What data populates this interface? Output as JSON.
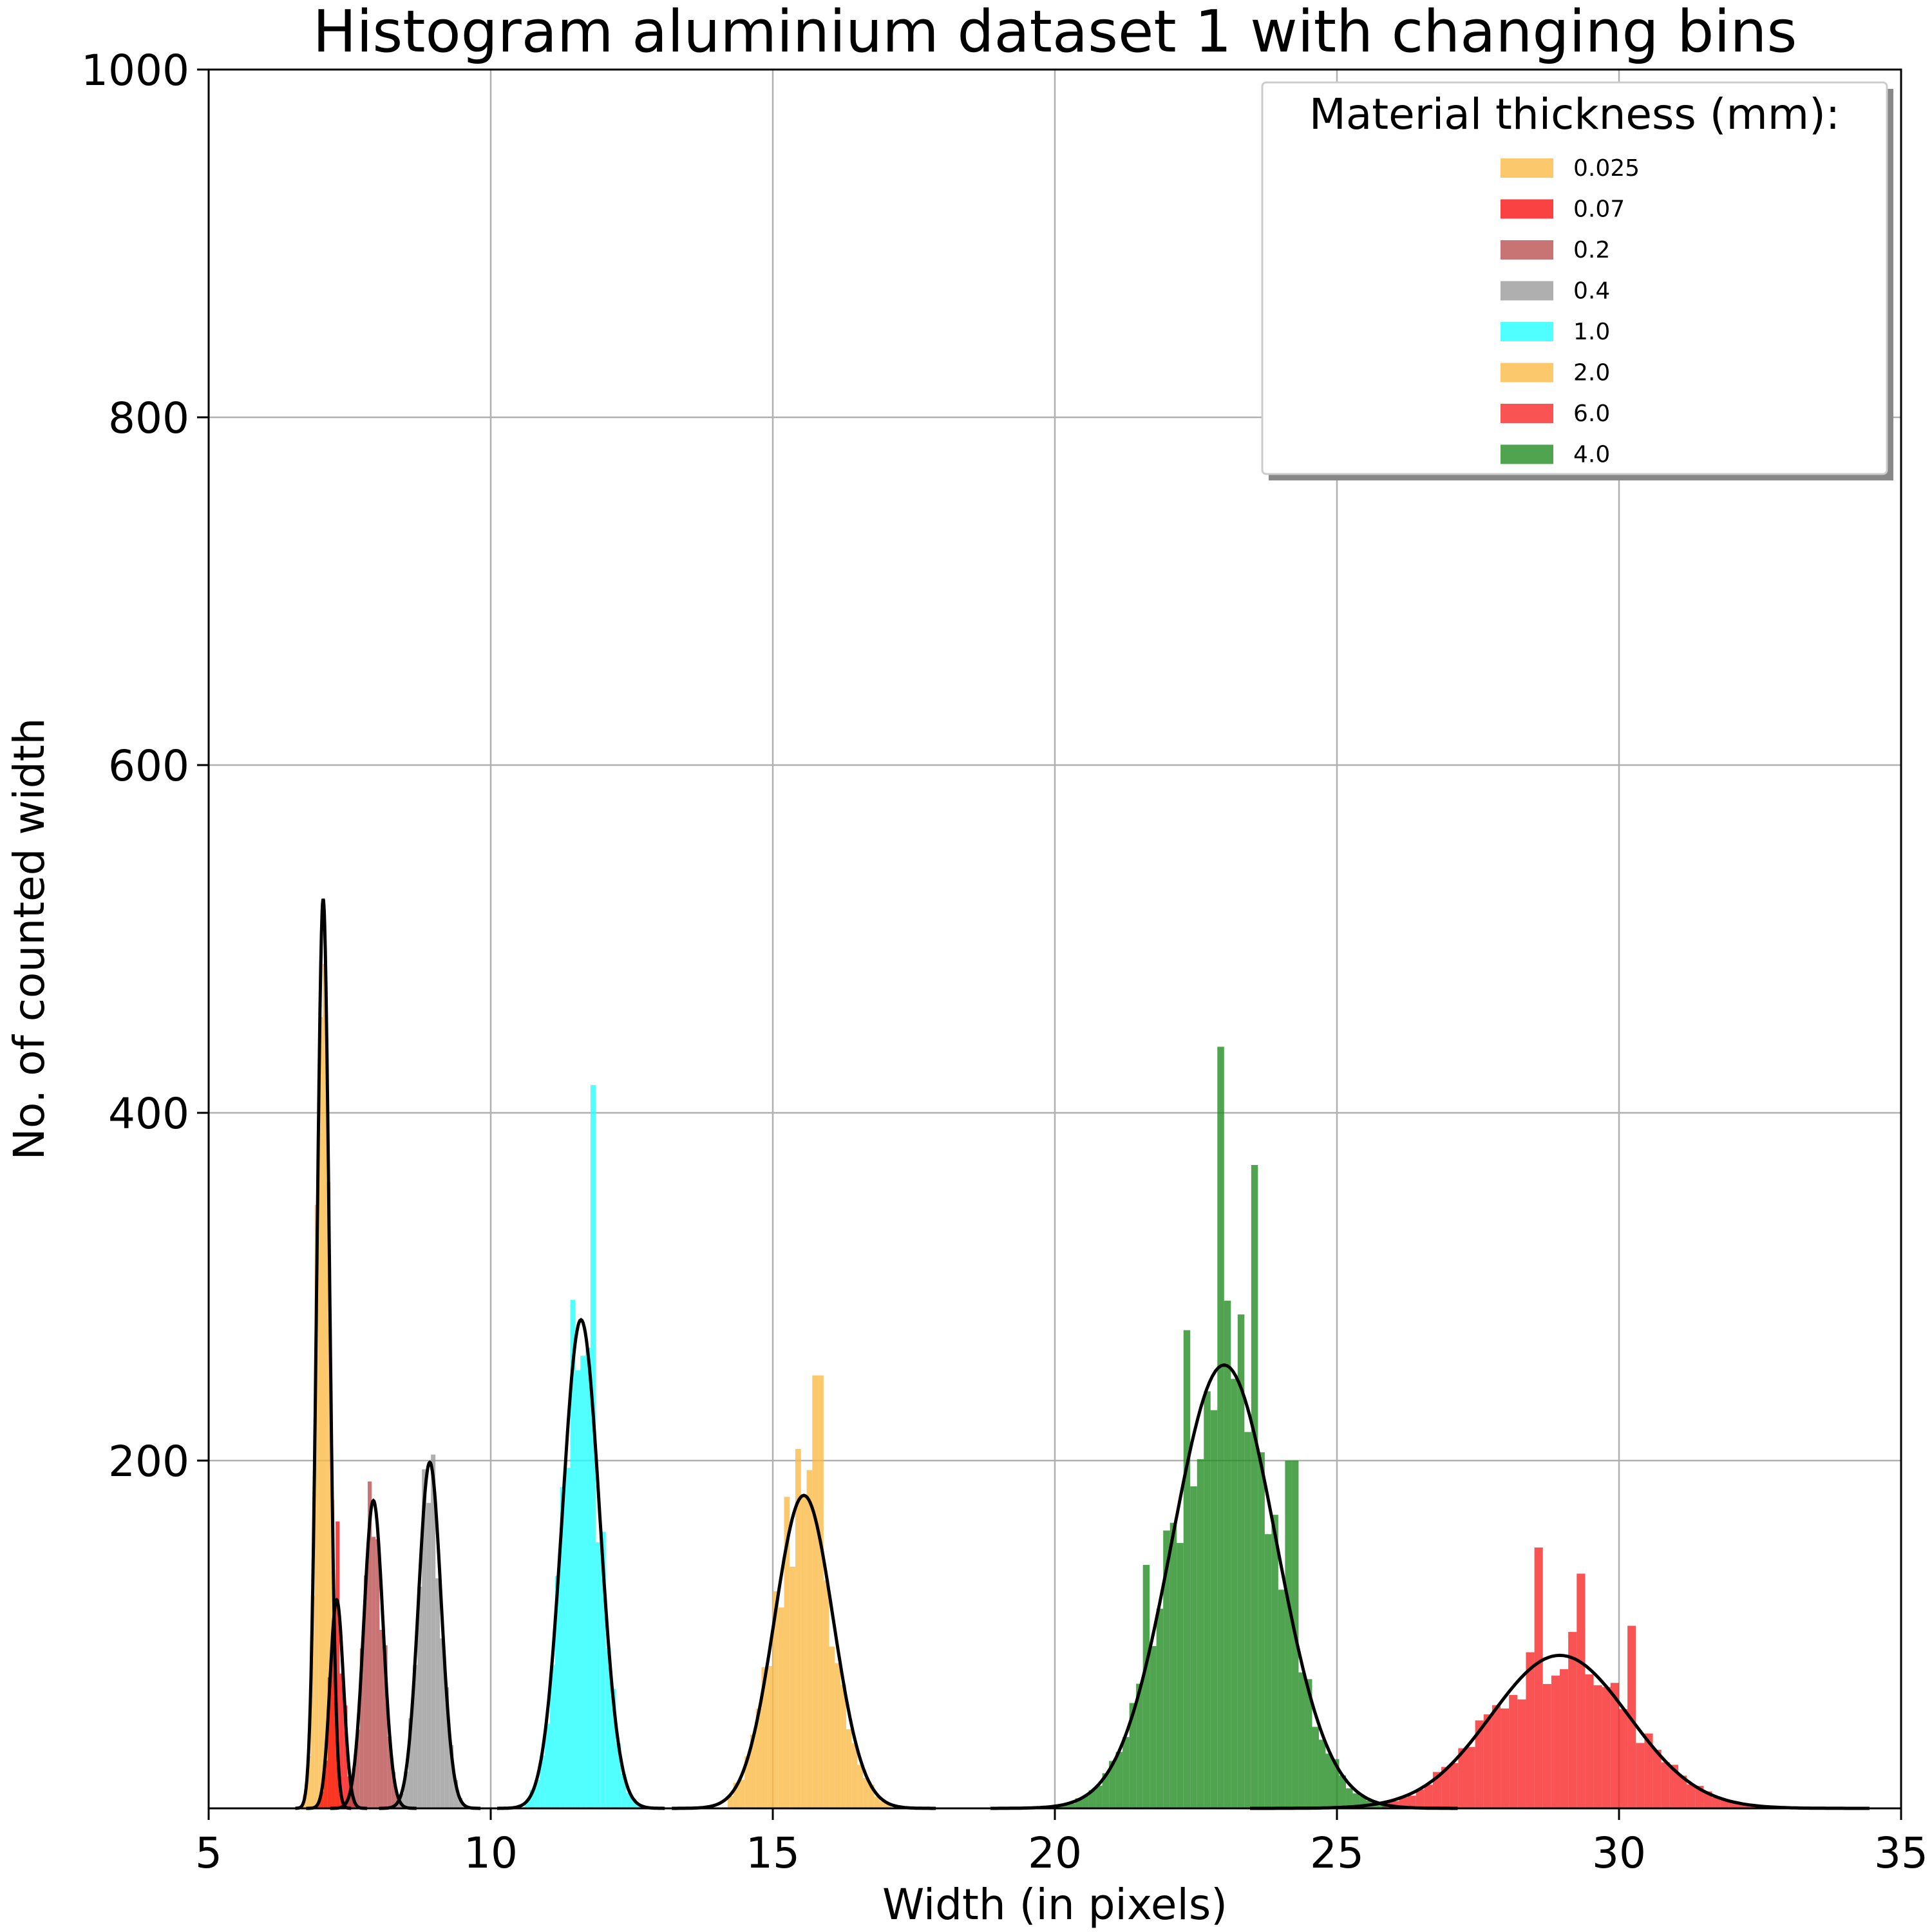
{
  "chart_data": {
    "type": "bar",
    "title": "Histogram aluminium dataset 1 with changing bins",
    "xlabel": "Width (in pixels)",
    "ylabel": "No. of counted width",
    "xlim": [
      5,
      35
    ],
    "ylim": [
      0,
      1000
    ],
    "xticks": [
      5,
      10,
      15,
      20,
      25,
      30,
      35
    ],
    "yticks": [
      200,
      400,
      600,
      800,
      1000
    ],
    "grid": true,
    "legend": {
      "title": "Material thickness (mm):",
      "placement": "top-right"
    },
    "series": [
      {
        "name": "0.025",
        "color": "#FBB943",
        "mean": 7.03,
        "sd": 0.11,
        "peak": 523,
        "bin_width": 0.07,
        "x_min": 6.6,
        "x_max": 7.45,
        "spikes": [
          [
            7.0,
            455
          ]
        ]
      },
      {
        "name": "0.07",
        "color": "#F90D0D",
        "mean": 7.27,
        "sd": 0.12,
        "peak": 120,
        "bin_width": 0.07,
        "x_min": 6.9,
        "x_max": 7.6,
        "spikes": [
          [
            7.27,
            165
          ]
        ]
      },
      {
        "name": "0.2",
        "color": "#B84D4D",
        "mean": 7.92,
        "sd": 0.17,
        "peak": 177,
        "bin_width": 0.07,
        "x_min": 7.4,
        "x_max": 8.5,
        "spikes": [
          [
            7.85,
            188
          ]
        ]
      },
      {
        "name": "0.4",
        "color": "#999999",
        "mean": 8.92,
        "sd": 0.2,
        "peak": 199,
        "bin_width": 0.08,
        "x_min": 8.3,
        "x_max": 9.6,
        "spikes": [
          [
            8.85,
            195
          ]
        ]
      },
      {
        "name": "1.0",
        "color": "#1FFFFF",
        "mean": 11.6,
        "sd": 0.33,
        "peak": 281,
        "bin_width": 0.09,
        "x_min": 10.6,
        "x_max": 12.6,
        "spikes": [
          [
            11.85,
            416
          ],
          [
            11.55,
            252
          ]
        ]
      },
      {
        "name": "2.0",
        "color": "#FBB943",
        "mean": 15.55,
        "sd": 0.52,
        "peak": 180,
        "bin_width": 0.1,
        "x_min": 14.2,
        "x_max": 17.1,
        "spikes": [
          [
            15.8,
            249
          ],
          [
            14.0,
            100
          ]
        ]
      },
      {
        "name": "6.0",
        "color": "#F92323",
        "mean": 28.95,
        "sd": 1.22,
        "peak": 88,
        "bin_width": 0.15,
        "x_min": 25.8,
        "x_max": 32.8,
        "spikes": [
          [
            28.6,
            150
          ],
          [
            29.3,
            135
          ],
          [
            30.2,
            105
          ]
        ]
      },
      {
        "name": "4.0",
        "color": "#1F8A1F",
        "mean": 23.0,
        "sd": 0.92,
        "peak": 255,
        "bin_width": 0.12,
        "x_min": 20.0,
        "x_max": 25.8,
        "spikes": [
          [
            22.95,
            438
          ],
          [
            23.55,
            370
          ],
          [
            22.3,
            275
          ],
          [
            24.2,
            200
          ],
          [
            21.6,
            140
          ]
        ]
      }
    ]
  }
}
